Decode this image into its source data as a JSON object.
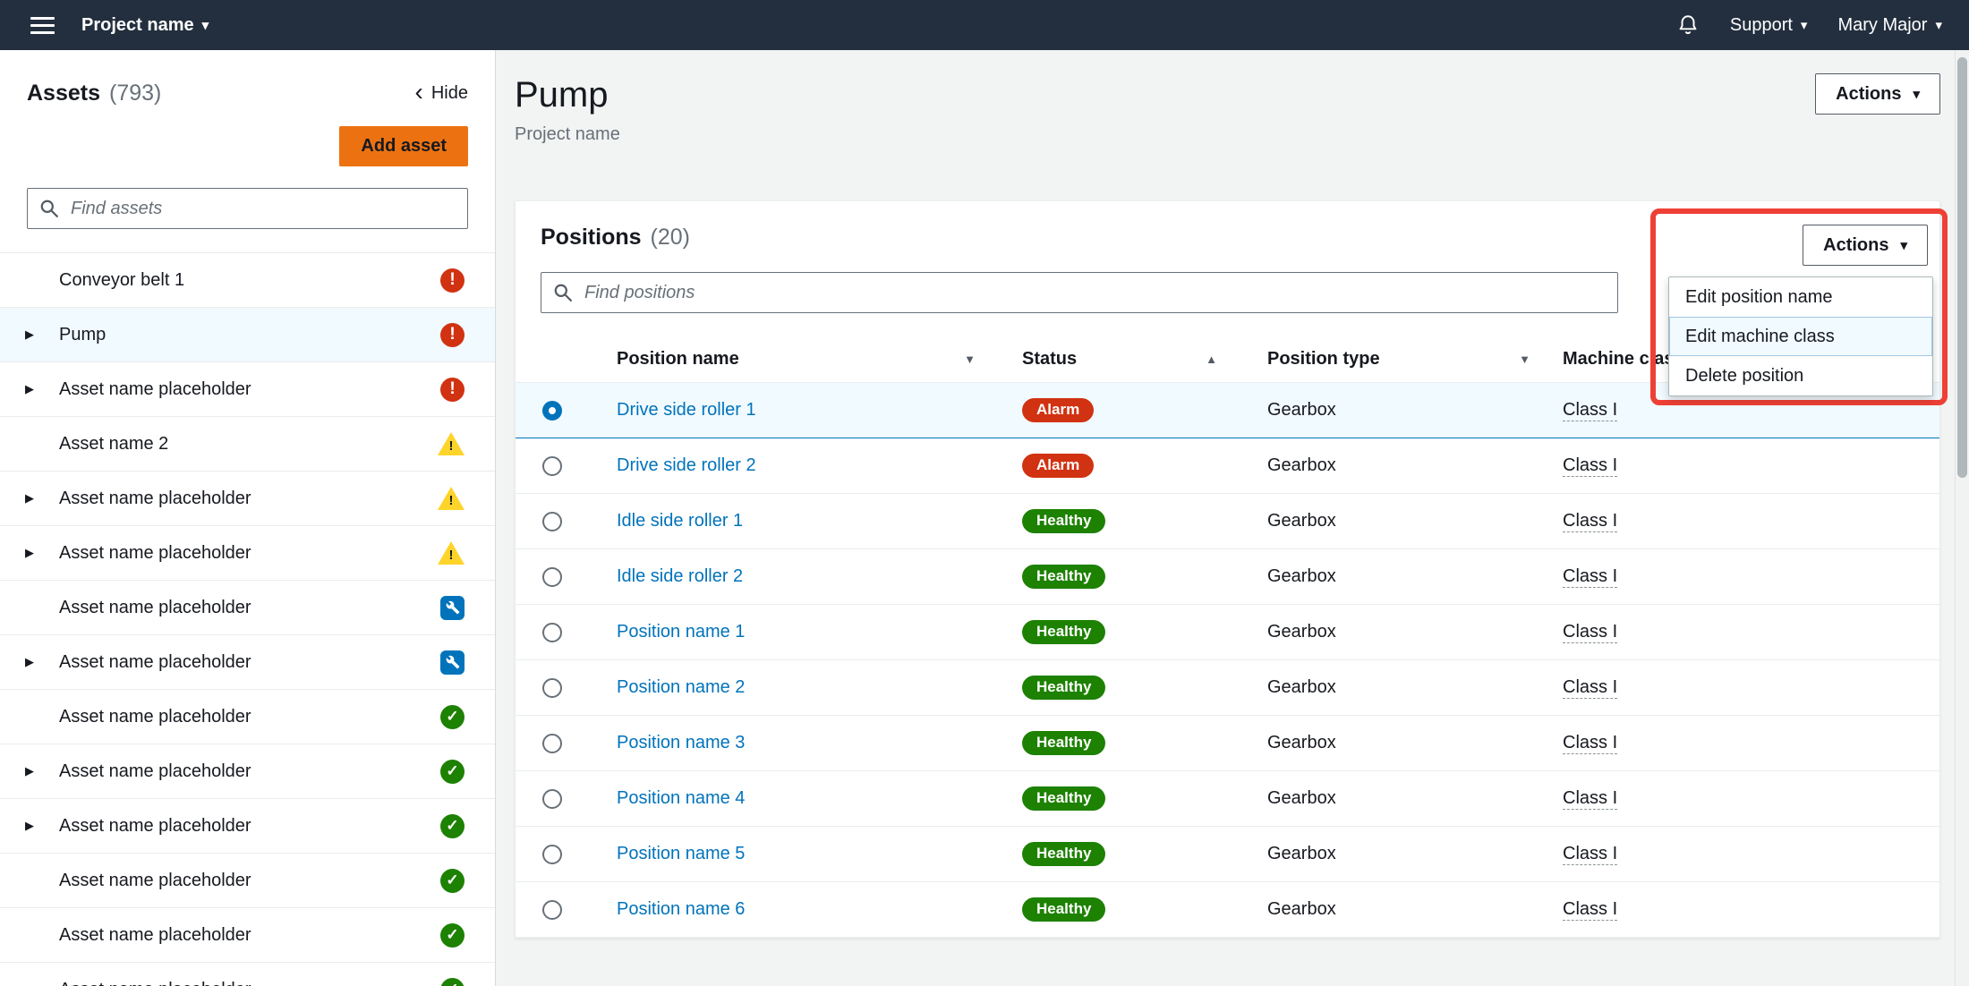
{
  "topbar": {
    "project": "Project name",
    "support": "Support",
    "user": "Mary Major"
  },
  "sidebar": {
    "title": "Assets",
    "count": "(793)",
    "hide": "Hide",
    "add_asset": "Add asset",
    "search_placeholder": "Find assets",
    "assets": [
      {
        "label": "Conveyor belt 1",
        "status": "alarm",
        "expandable": false,
        "selected": false
      },
      {
        "label": "Pump",
        "status": "alarm",
        "expandable": true,
        "selected": true
      },
      {
        "label": "Asset name placeholder",
        "status": "alarm",
        "expandable": true,
        "selected": false
      },
      {
        "label": "Asset name 2",
        "status": "warning",
        "expandable": false,
        "selected": false
      },
      {
        "label": "Asset name placeholder",
        "status": "warning",
        "expandable": true,
        "selected": false
      },
      {
        "label": "Asset name placeholder",
        "status": "warning",
        "expandable": true,
        "selected": false
      },
      {
        "label": "Asset name placeholder",
        "status": "maintenance",
        "expandable": false,
        "selected": false
      },
      {
        "label": "Asset name placeholder",
        "status": "maintenance",
        "expandable": true,
        "selected": false
      },
      {
        "label": "Asset name placeholder",
        "status": "healthy",
        "expandable": false,
        "selected": false
      },
      {
        "label": "Asset name placeholder",
        "status": "healthy",
        "expandable": true,
        "selected": false
      },
      {
        "label": "Asset name placeholder",
        "status": "healthy",
        "expandable": true,
        "selected": false
      },
      {
        "label": "Asset name placeholder",
        "status": "healthy",
        "expandable": false,
        "selected": false
      },
      {
        "label": "Asset name placeholder",
        "status": "healthy",
        "expandable": false,
        "selected": false
      },
      {
        "label": "Asset name placeholder",
        "status": "healthy",
        "expandable": false,
        "selected": false
      }
    ]
  },
  "page": {
    "title": "Pump",
    "subtitle": "Project name",
    "actions": "Actions"
  },
  "positions": {
    "title": "Positions",
    "count": "(20)",
    "search_placeholder": "Find positions",
    "actions": "Actions",
    "menu": {
      "items": [
        {
          "label": "Edit position name",
          "highlighted": false
        },
        {
          "label": "Edit machine class",
          "highlighted": true
        },
        {
          "label": "Delete position",
          "highlighted": false
        }
      ]
    },
    "table": {
      "columns": [
        {
          "label": "Position name",
          "sort": "desc"
        },
        {
          "label": "Status",
          "sort": "asc"
        },
        {
          "label": "Position type",
          "sort": "desc"
        },
        {
          "label": "Machine class",
          "sort": "desc"
        }
      ],
      "rows": [
        {
          "name": "Drive side roller 1",
          "status": "Alarm",
          "status_kind": "alarm",
          "type": "Gearbox",
          "machine_class": "Class I",
          "selected": true
        },
        {
          "name": "Drive side roller 2",
          "status": "Alarm",
          "status_kind": "alarm",
          "type": "Gearbox",
          "machine_class": "Class I",
          "selected": false
        },
        {
          "name": "Idle side roller 1",
          "status": "Healthy",
          "status_kind": "healthy",
          "type": "Gearbox",
          "machine_class": "Class I",
          "selected": false
        },
        {
          "name": "Idle side roller 2",
          "status": "Healthy",
          "status_kind": "healthy",
          "type": "Gearbox",
          "machine_class": "Class I",
          "selected": false
        },
        {
          "name": "Position name 1",
          "status": "Healthy",
          "status_kind": "healthy",
          "type": "Gearbox",
          "machine_class": "Class I",
          "selected": false
        },
        {
          "name": "Position name 2",
          "status": "Healthy",
          "status_kind": "healthy",
          "type": "Gearbox",
          "machine_class": "Class I",
          "selected": false
        },
        {
          "name": "Position name 3",
          "status": "Healthy",
          "status_kind": "healthy",
          "type": "Gearbox",
          "machine_class": "Class I",
          "selected": false
        },
        {
          "name": "Position name 4",
          "status": "Healthy",
          "status_kind": "healthy",
          "type": "Gearbox",
          "machine_class": "Class I",
          "selected": false
        },
        {
          "name": "Position name 5",
          "status": "Healthy",
          "status_kind": "healthy",
          "type": "Gearbox",
          "machine_class": "Class I",
          "selected": false
        },
        {
          "name": "Position name 6",
          "status": "Healthy",
          "status_kind": "healthy",
          "type": "Gearbox",
          "machine_class": "Class I",
          "selected": false
        }
      ]
    }
  },
  "icons": {
    "chevron-down": "▾",
    "chevron-left": "‹",
    "expand-arrow": "▶",
    "sort-asc": "▲",
    "sort-desc": "▼",
    "check": "✓",
    "exclamation": "!"
  },
  "colors": {
    "topbar_bg": "#232f3e",
    "primary_button_orange": "#ec7211",
    "link_blue": "#0073bb",
    "alarm_red": "#d13212",
    "healthy_green": "#1d8102",
    "warning_yellow": "#ffd42a",
    "maintenance_blue": "#0073bb",
    "selected_row_bg": "#f1faff",
    "annotation_red": "#ee4035"
  }
}
